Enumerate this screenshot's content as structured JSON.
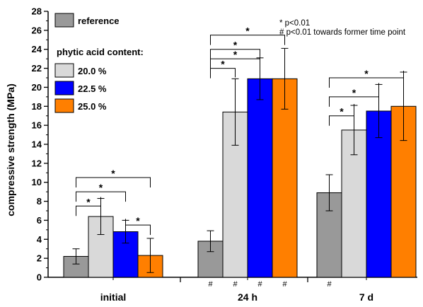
{
  "chart_data": {
    "type": "bar",
    "ylabel": "compressive strength (MPa)",
    "xlabel": "",
    "ylim": [
      0,
      28
    ],
    "yticks": [
      0,
      2,
      4,
      6,
      8,
      10,
      12,
      14,
      16,
      18,
      20,
      22,
      24,
      26,
      28
    ],
    "categories": [
      "initial",
      "24 h",
      "7 d"
    ],
    "series": [
      {
        "name": "reference",
        "color": "#999999",
        "values": [
          2.2,
          3.8,
          8.9
        ],
        "errors": [
          0.8,
          1.1,
          1.9
        ]
      },
      {
        "name": "20.0 %",
        "color": "#d9d9d9",
        "values": [
          6.4,
          17.4,
          15.5
        ],
        "errors": [
          1.9,
          3.5,
          2.6
        ]
      },
      {
        "name": "22.5 %",
        "color": "#0000ff",
        "values": [
          4.8,
          20.9,
          17.5
        ],
        "errors": [
          1.2,
          2.2,
          2.8
        ]
      },
      {
        "name": "25.0 %",
        "color": "#ff7f00",
        "values": [
          2.3,
          20.9,
          18.0
        ],
        "errors": [
          1.8,
          3.2,
          3.6
        ]
      }
    ],
    "legend": {
      "placement": "top-left",
      "group_title": "phytic acid content:"
    },
    "annotations": {
      "notes": [
        "* p<0.01",
        "# p<0.01 towards former time point"
      ],
      "significance_symbol": "*",
      "hash_symbol": "#",
      "brackets": [
        {
          "group": 0,
          "from": 0,
          "to": 1,
          "y": 7.5
        },
        {
          "group": 0,
          "from": 0,
          "to": 2,
          "y": 9.0
        },
        {
          "group": 0,
          "from": 0,
          "to": 3,
          "y": 10.5
        },
        {
          "group": 0,
          "from": 2,
          "to": 3,
          "y": 5.5
        },
        {
          "group": 1,
          "from": 0,
          "to": 1,
          "y": 22.0
        },
        {
          "group": 1,
          "from": 0,
          "to": 2,
          "y": 24.0
        },
        {
          "group": 1,
          "from": 0,
          "to": 3,
          "y": 25.5
        },
        {
          "group": 1,
          "from": 0,
          "to": 2,
          "y": 23.0
        },
        {
          "group": 2,
          "from": 0,
          "to": 1,
          "y": 17.0
        },
        {
          "group": 2,
          "from": 0,
          "to": 2,
          "y": 19.0
        },
        {
          "group": 2,
          "from": 0,
          "to": 3,
          "y": 21.0
        }
      ],
      "hash_marks": [
        {
          "group": 1,
          "bar": 0
        },
        {
          "group": 1,
          "bar": 1
        },
        {
          "group": 1,
          "bar": 2
        },
        {
          "group": 1,
          "bar": 3
        },
        {
          "group": 2,
          "bar": 0
        }
      ]
    }
  }
}
